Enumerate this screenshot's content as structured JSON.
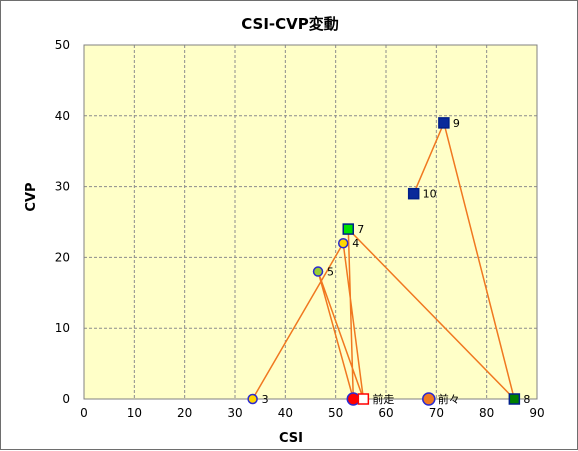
{
  "chart_data": {
    "type": "scatter",
    "title": "CSI-CVP変動",
    "xlabel": "CSI",
    "ylabel": "CVP",
    "xlim": [
      0,
      90
    ],
    "ylim": [
      0,
      50
    ],
    "xticks": [
      0,
      10,
      20,
      30,
      40,
      50,
      60,
      70,
      80,
      90
    ],
    "yticks": [
      0,
      10,
      20,
      30,
      40,
      50
    ],
    "grid": true,
    "plot_background": "#ffffc8",
    "line_color": "#f07820",
    "points": [
      {
        "label": "3",
        "x": 33.5,
        "y": 0,
        "marker": "circle",
        "fill": "#ffd700",
        "stroke": "#2a2ad0"
      },
      {
        "label": "4",
        "x": 51.5,
        "y": 22,
        "marker": "circle",
        "fill": "#ffd700",
        "stroke": "#2a2ad0"
      },
      {
        "label": "5",
        "x": 46.5,
        "y": 18,
        "marker": "circle",
        "fill": "#9acd32",
        "stroke": "#2a2ad0"
      },
      {
        "label": "7",
        "x": 52.5,
        "y": 24,
        "marker": "square",
        "fill": "#00e000",
        "stroke": "#00208a"
      },
      {
        "label": "8",
        "x": 85.5,
        "y": 0,
        "marker": "square",
        "fill": "#008000",
        "stroke": "#00208a"
      },
      {
        "label": "9",
        "x": 71.5,
        "y": 39,
        "marker": "square",
        "fill": "#0a2a9a",
        "stroke": "#00208a"
      },
      {
        "label": "10",
        "x": 65.5,
        "y": 29,
        "marker": "square",
        "fill": "#0a2a9a",
        "stroke": "#00208a"
      },
      {
        "label": "前走",
        "x": 55.5,
        "y": 0,
        "marker": "square",
        "fill": "#ffffff",
        "stroke": "#ff0000"
      },
      {
        "label": "前々",
        "x": 68.5,
        "y": 0,
        "marker": "circle",
        "fill": "#f07820",
        "stroke": "#2a2ad0"
      }
    ],
    "extra_markers": [
      {
        "x": 53.5,
        "y": 0,
        "marker": "circle",
        "fill": "#ff0000",
        "stroke": "#2a2ad0"
      }
    ],
    "path": [
      [
        33.5,
        0
      ],
      [
        51.5,
        22
      ],
      [
        55.5,
        0
      ],
      [
        46.5,
        18
      ],
      [
        53.5,
        0
      ],
      [
        52.5,
        24
      ],
      [
        85.5,
        0
      ],
      [
        71.5,
        39
      ],
      [
        65.5,
        29
      ]
    ]
  }
}
